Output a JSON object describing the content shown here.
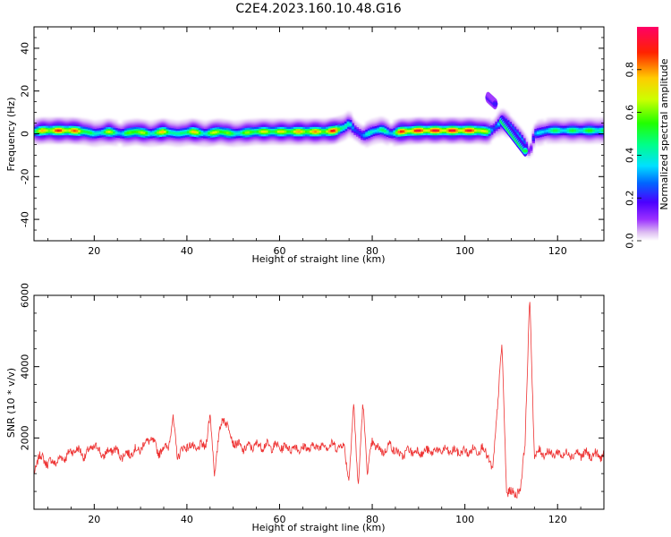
{
  "figure": {
    "title": "C2E4.2023.160.10.48.G16"
  },
  "chart_data": [
    {
      "type": "heatmap",
      "xlabel": "Height of straight line (km)",
      "ylabel": "Frequency (Hz)",
      "xlim": [
        7,
        130
      ],
      "ylim": [
        -50,
        50
      ],
      "xticks": [
        20,
        40,
        60,
        80,
        100,
        120
      ],
      "yticks": [
        -40,
        -20,
        0,
        20,
        40
      ],
      "grid": false,
      "colorbar": {
        "label": "Normalized spectral amplitude",
        "range": [
          0,
          1
        ],
        "ticks": [
          "0.0",
          "0.2",
          "0.4",
          "0.6",
          "0.8"
        ],
        "colormap": "gist_rainbow_r"
      },
      "ridge": {
        "x": [
          7,
          9,
          12,
          15,
          18,
          20,
          23,
          26,
          29,
          32,
          35,
          38,
          41,
          44,
          47,
          50,
          55,
          60,
          65,
          70,
          72,
          74,
          75,
          76,
          78,
          80,
          82,
          84,
          86,
          90,
          95,
          100,
          103,
          105,
          106,
          107,
          108,
          110,
          112,
          113,
          114,
          115,
          118,
          122,
          126,
          130
        ],
        "y": [
          1,
          1.5,
          1.5,
          1.5,
          1,
          0,
          1,
          0,
          1,
          0,
          1,
          0,
          1,
          0,
          1,
          0,
          1,
          1,
          1,
          1,
          1.5,
          3,
          5,
          2,
          -1,
          1,
          2,
          0,
          1,
          1.5,
          1.5,
          1.5,
          1.5,
          1,
          2,
          4,
          6,
          3,
          -2,
          -5,
          -9,
          0,
          1.5,
          1.5,
          1.5,
          1.5
        ],
        "amp": [
          0.6,
          0.8,
          0.9,
          0.9,
          0.7,
          0.4,
          0.7,
          0.4,
          0.8,
          0.5,
          0.8,
          0.4,
          0.8,
          0.5,
          0.8,
          0.5,
          0.7,
          0.7,
          0.8,
          0.8,
          0.95,
          0.5,
          0.4,
          0.3,
          0.3,
          0.5,
          0.5,
          0.4,
          0.9,
          0.95,
          0.95,
          0.95,
          0.9,
          0.6,
          0.3,
          0.4,
          0.5,
          0.4,
          0.3,
          0.3,
          0.15,
          0.3,
          0.5,
          0.5,
          0.55,
          0.55
        ]
      },
      "features": [
        {
          "x0": 105,
          "y0": 17,
          "x1": 106.5,
          "y1": 14,
          "amp": 0.15
        },
        {
          "x0": 108,
          "y0": 6,
          "x1": 113,
          "y1": -8,
          "amp": 0.45
        }
      ]
    },
    {
      "type": "line",
      "xlabel": "Height of straight line (km)",
      "ylabel": "SNR (10 * v/v)",
      "xlim": [
        7,
        130
      ],
      "ylim": [
        0,
        6000
      ],
      "xticks": [
        20,
        40,
        60,
        80,
        100,
        120
      ],
      "yticks": [
        2000,
        4000,
        6000
      ],
      "grid": false,
      "line_color": "#ee3333",
      "series": [
        {
          "anchors_x": [
            7,
            8,
            10,
            12,
            14,
            16,
            18,
            20,
            22,
            24,
            26,
            28,
            30,
            32,
            34,
            36,
            37,
            38,
            40,
            42,
            44,
            45,
            46,
            47,
            48,
            50,
            52,
            55,
            60,
            65,
            70,
            74,
            75,
            76,
            77,
            78,
            79,
            80,
            82,
            84,
            86,
            88,
            90,
            95,
            100,
            104,
            105,
            106,
            107,
            108,
            109,
            110,
            112,
            113,
            114,
            115,
            116,
            120,
            125,
            130
          ],
          "anchors_y": [
            1000,
            1500,
            1300,
            1350,
            1500,
            1700,
            1500,
            1800,
            1500,
            1700,
            1500,
            1600,
            1700,
            2000,
            1600,
            1800,
            2500,
            1500,
            1800,
            1700,
            1800,
            2600,
            1000,
            2200,
            2600,
            1900,
            1700,
            1800,
            1750,
            1700,
            1800,
            1750,
            800,
            3000,
            600,
            3000,
            1000,
            1900,
            1600,
            1800,
            1500,
            1650,
            1600,
            1650,
            1600,
            1700,
            1500,
            1000,
            2900,
            4600,
            500,
            450,
            500,
            2000,
            5900,
            1500,
            1600,
            1550,
            1550,
            1500
          ],
          "noise": 120
        }
      ]
    }
  ]
}
